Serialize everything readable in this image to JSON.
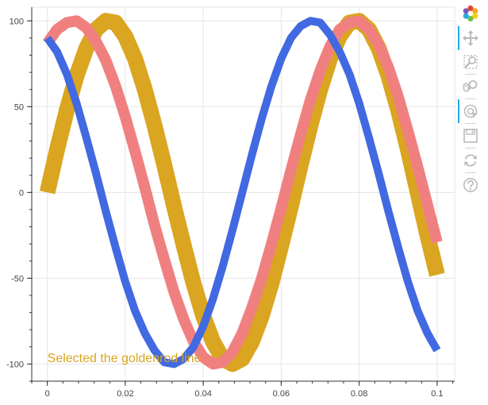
{
  "chart_data": {
    "type": "line",
    "x": [
      0,
      0.0025,
      0.005,
      0.0075,
      0.01,
      0.0125,
      0.015,
      0.0175,
      0.02,
      0.0225,
      0.025,
      0.0275,
      0.03,
      0.0325,
      0.035,
      0.0375,
      0.04,
      0.0425,
      0.045,
      0.0475,
      0.05,
      0.0525,
      0.055,
      0.0575,
      0.06,
      0.0625,
      0.065,
      0.0675,
      0.07,
      0.0725,
      0.075,
      0.0775,
      0.08,
      0.0825,
      0.085,
      0.0875,
      0.09,
      0.0925,
      0.095,
      0.0975,
      0.1
    ],
    "series": [
      {
        "color": "#daa520",
        "line_width": 20,
        "values": [
          0,
          25,
          48,
          68,
          84,
          95,
          100,
          99,
          91,
          78,
          60,
          39,
          16,
          -8,
          -31,
          -53,
          -72,
          -87,
          -97,
          -100,
          -97,
          -87,
          -72,
          -53,
          -31,
          -8,
          16,
          39,
          60,
          78,
          91,
          99,
          100,
          95,
          84,
          68,
          48,
          25,
          0,
          -25,
          -48
        ]
      },
      {
        "color": "#f08080",
        "line_width": 14,
        "values": [
          87,
          95,
          99,
          100,
          96,
          88,
          77,
          62,
          44,
          24,
          3,
          -19,
          -39,
          -58,
          -74,
          -87,
          -96,
          -100,
          -99,
          -93,
          -82,
          -67,
          -50,
          -30,
          -9,
          13,
          34,
          54,
          71,
          85,
          95,
          99,
          100,
          95,
          86,
          73,
          56,
          36,
          15,
          -7,
          -29
        ]
      },
      {
        "color": "#4169e1",
        "line_width": 10,
        "values": [
          90,
          82,
          69,
          52,
          32,
          11,
          -11,
          -32,
          -52,
          -69,
          -82,
          -92,
          -99,
          -100,
          -97,
          -90,
          -78,
          -62,
          -43,
          -22,
          0,
          22,
          43,
          62,
          78,
          90,
          97,
          100,
          99,
          92,
          82,
          69,
          52,
          32,
          11,
          -11,
          -32,
          -52,
          -69,
          -82,
          -92
        ]
      }
    ],
    "xlim": [
      -0.004,
      0.1045
    ],
    "ylim": [
      -110,
      108
    ],
    "xticks": [
      "0",
      "0.02",
      "0.04",
      "0.06",
      "0.08",
      "0.1"
    ],
    "xtick_values": [
      0,
      0.02,
      0.04,
      0.06,
      0.08,
      0.1
    ],
    "yticks": [
      "100",
      "50",
      "0",
      "-50",
      "-100"
    ],
    "ytick_values": [
      100,
      50,
      0,
      -50,
      -100
    ],
    "grid": true,
    "annotation": {
      "text": "Selected the goldenrod line",
      "color": "#daa520"
    }
  },
  "toolbar": {
    "tools": [
      {
        "name": "bokeh-logo-icon",
        "active": false
      },
      {
        "name": "pan-icon",
        "active": true
      },
      {
        "name": "box-zoom-icon",
        "active": false
      },
      {
        "name": "wheel-zoom-icon",
        "active": false
      },
      {
        "name": "tap-icon",
        "active": true
      },
      {
        "name": "save-icon",
        "active": false
      },
      {
        "name": "reset-icon",
        "active": false
      },
      {
        "name": "help-icon",
        "active": false
      }
    ]
  }
}
